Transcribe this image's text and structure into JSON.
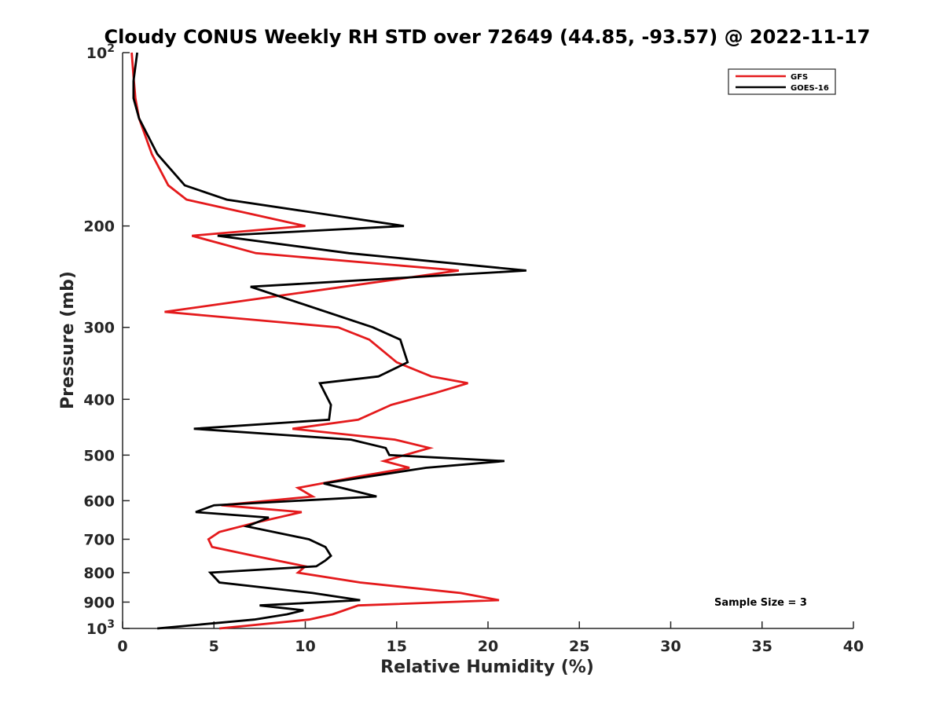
{
  "chart_data": {
    "type": "line",
    "title": "Cloudy CONUS Weekly RH STD over 72649 (44.85, -93.57) @ 2022-11-17",
    "xlabel": "Relative Humidity (%)",
    "ylabel": "Pressure (mb)",
    "xlim": [
      0,
      40
    ],
    "ylim": [
      100,
      1000
    ],
    "y_scale": "log",
    "y_reversed": true,
    "grid": false,
    "x_ticks": [
      0,
      5,
      10,
      15,
      20,
      25,
      30,
      35,
      40
    ],
    "x_tick_labels": [
      "0",
      "5",
      "10",
      "15",
      "20",
      "25",
      "30",
      "35",
      "40"
    ],
    "y_ticks": [
      100,
      200,
      300,
      400,
      500,
      600,
      700,
      800,
      900,
      1000
    ],
    "y_tick_labels": [
      "10^2",
      "200",
      "300",
      "400",
      "500",
      "600",
      "700",
      "800",
      "900",
      "10^3"
    ],
    "legend": {
      "position": "top-right"
    },
    "annotation": "Sample Size = 3",
    "series": [
      {
        "name": "GFS",
        "color": "#e41a1c",
        "x": [
          0.5,
          0.6,
          0.7,
          0.9,
          1.6,
          2.5,
          3.5,
          10.0,
          3.8,
          7.3,
          18.4,
          2.3,
          11.8,
          13.5,
          15.0,
          16.9,
          18.9,
          17.1,
          14.7,
          12.9,
          9.3,
          14.9,
          16.8,
          14.3,
          15.7,
          13.0,
          9.6,
          10.4,
          5.4,
          9.8,
          7.2,
          5.3,
          4.7,
          4.9,
          7.2,
          10.0,
          9.6,
          13.0,
          18.5,
          20.6,
          12.9,
          11.5,
          10.2,
          5.3
        ],
        "y": [
          100,
          110,
          120,
          130,
          150,
          170,
          180,
          200,
          208,
          223,
          239,
          282,
          300,
          315,
          345,
          365,
          375,
          390,
          409,
          434,
          450,
          470,
          486,
          512,
          526,
          544,
          570,
          590,
          611,
          628,
          656,
          680,
          700,
          722,
          748,
          780,
          800,
          832,
          868,
          893,
          912,
          945,
          965,
          1000
        ]
      },
      {
        "name": "GOES-16",
        "color": "#000000",
        "x": [
          0.8,
          0.6,
          0.6,
          0.9,
          1.9,
          3.4,
          5.7,
          15.4,
          5.2,
          12.4,
          22.1,
          7.0,
          13.7,
          15.2,
          15.6,
          14.0,
          10.8,
          11.4,
          11.3,
          3.9,
          12.5,
          14.4,
          14.6,
          20.9,
          16.6,
          11.0,
          13.9,
          5.0,
          4.0,
          8.0,
          6.8,
          10.2,
          11.1,
          11.4,
          11.1,
          10.6,
          4.8,
          5.3,
          10.4,
          13.0,
          7.5,
          9.9,
          9.0,
          7.2,
          1.9
        ],
        "y": [
          100,
          112,
          120,
          130,
          150,
          170,
          180,
          200,
          208,
          223,
          239,
          255,
          300,
          315,
          345,
          365,
          375,
          409,
          434,
          450,
          470,
          486,
          500,
          512,
          526,
          560,
          590,
          611,
          628,
          642,
          665,
          700,
          722,
          748,
          762,
          780,
          800,
          832,
          868,
          893,
          912,
          930,
          945,
          965,
          1000
        ]
      }
    ]
  }
}
